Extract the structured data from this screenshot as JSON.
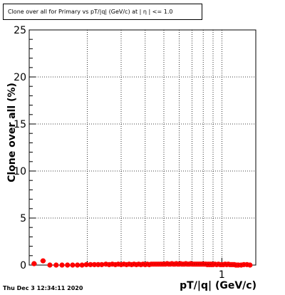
{
  "chart_data": {
    "type": "scatter",
    "title": "Clone  over all for Primary vs pT/|q| (GeV/c) at | η | <= 1.0",
    "xlabel": "pT/|q| (GeV/c)",
    "ylabel": "Clone  over all (%)",
    "x_scale": "log",
    "xlim": [
      0.1,
      1.5
    ],
    "ylim": [
      0,
      25
    ],
    "yticks": [
      0,
      5,
      10,
      15,
      20,
      25
    ],
    "xtick_labels": [
      {
        "value": 1,
        "label": "1"
      }
    ],
    "grid": true,
    "marker_color": "#ff0000",
    "series": [
      {
        "x": [
          0.106,
          0.118,
          0.128,
          0.138,
          0.148,
          0.158,
          0.168,
          0.178,
          0.188,
          0.198,
          0.208,
          0.218,
          0.228,
          0.238,
          0.25,
          0.26,
          0.27,
          0.28,
          0.29,
          0.3,
          0.31,
          0.32,
          0.33,
          0.34,
          0.35,
          0.36,
          0.37,
          0.38,
          0.39,
          0.4,
          0.41,
          0.42,
          0.43,
          0.44,
          0.45,
          0.46,
          0.47,
          0.48,
          0.49,
          0.5,
          0.51,
          0.52,
          0.53,
          0.54,
          0.55,
          0.56,
          0.57,
          0.58,
          0.59,
          0.6,
          0.61,
          0.62,
          0.63,
          0.64,
          0.65,
          0.66,
          0.67,
          0.68,
          0.69,
          0.7,
          0.71,
          0.72,
          0.73,
          0.74,
          0.75,
          0.76,
          0.77,
          0.78,
          0.79,
          0.8,
          0.81,
          0.82,
          0.83,
          0.84,
          0.85,
          0.86,
          0.87,
          0.88,
          0.89,
          0.9,
          0.92,
          0.94,
          0.96,
          0.98,
          1.0,
          1.02,
          1.04,
          1.06,
          1.08,
          1.1,
          1.12,
          1.14,
          1.16,
          1.18,
          1.2,
          1.22,
          1.26,
          1.3,
          1.35,
          1.4
        ],
        "y": [
          0.15,
          0.45,
          0.0,
          0.0,
          0.0,
          0.0,
          0.0,
          0.0,
          0.0,
          0.05,
          0.05,
          0.05,
          0.05,
          0.05,
          0.1,
          0.05,
          0.1,
          0.05,
          0.1,
          0.05,
          0.1,
          0.05,
          0.1,
          0.05,
          0.1,
          0.05,
          0.1,
          0.05,
          0.1,
          0.05,
          0.1,
          0.05,
          0.1,
          0.1,
          0.1,
          0.1,
          0.1,
          0.1,
          0.1,
          0.1,
          0.1,
          0.15,
          0.1,
          0.1,
          0.15,
          0.1,
          0.1,
          0.15,
          0.1,
          0.1,
          0.15,
          0.1,
          0.1,
          0.1,
          0.15,
          0.1,
          0.1,
          0.1,
          0.15,
          0.1,
          0.1,
          0.1,
          0.1,
          0.1,
          0.1,
          0.1,
          0.1,
          0.1,
          0.1,
          0.1,
          0.1,
          0.1,
          0.1,
          0.05,
          0.1,
          0.05,
          0.1,
          0.05,
          0.1,
          0.05,
          0.1,
          0.05,
          0.1,
          0.05,
          0.05,
          0.05,
          0.1,
          0.05,
          0.1,
          0.05,
          0.05,
          0.05,
          0.05,
          0.0,
          0.0,
          0.0,
          0.0,
          0.05,
          0.05,
          0.0
        ]
      }
    ]
  },
  "footer": {
    "timestamp": "Thu Dec  3 12:34:11 2020"
  }
}
